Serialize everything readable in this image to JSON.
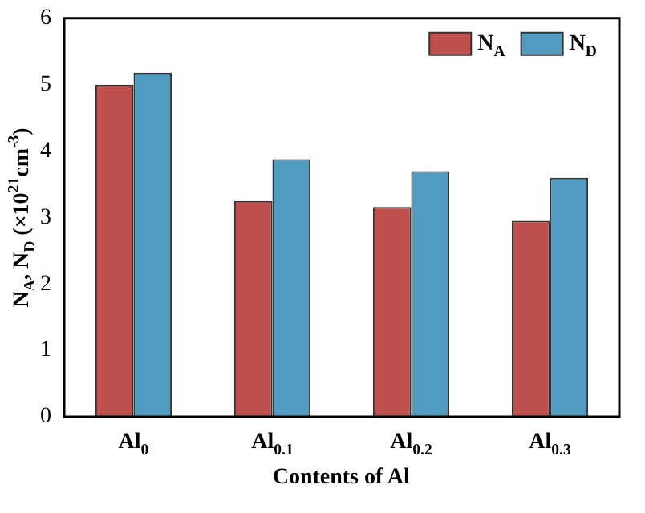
{
  "chart_data": {
    "type": "bar",
    "xlabel": "Contents of Al",
    "ylabel": "N$_{A}$, N$_{D}$ (×10$^{21}$cm$^{-3}$)",
    "categories": [
      "Al$_{0}$",
      "Al$_{0.1}$",
      "Al$_{0.2}$",
      "Al$_{0.3}$"
    ],
    "series": [
      {
        "name": "N$_{A}$",
        "color": "#c0504d",
        "values": [
          5.0,
          3.25,
          3.16,
          2.95
        ]
      },
      {
        "name": "N$_{D}$",
        "color": "#4f9cc0",
        "values": [
          5.18,
          3.88,
          3.7,
          3.6
        ]
      }
    ],
    "ylim": [
      0,
      6
    ],
    "yticks": [
      0,
      1,
      2,
      3,
      4,
      5,
      6
    ],
    "grid": false,
    "legend": "top right"
  }
}
